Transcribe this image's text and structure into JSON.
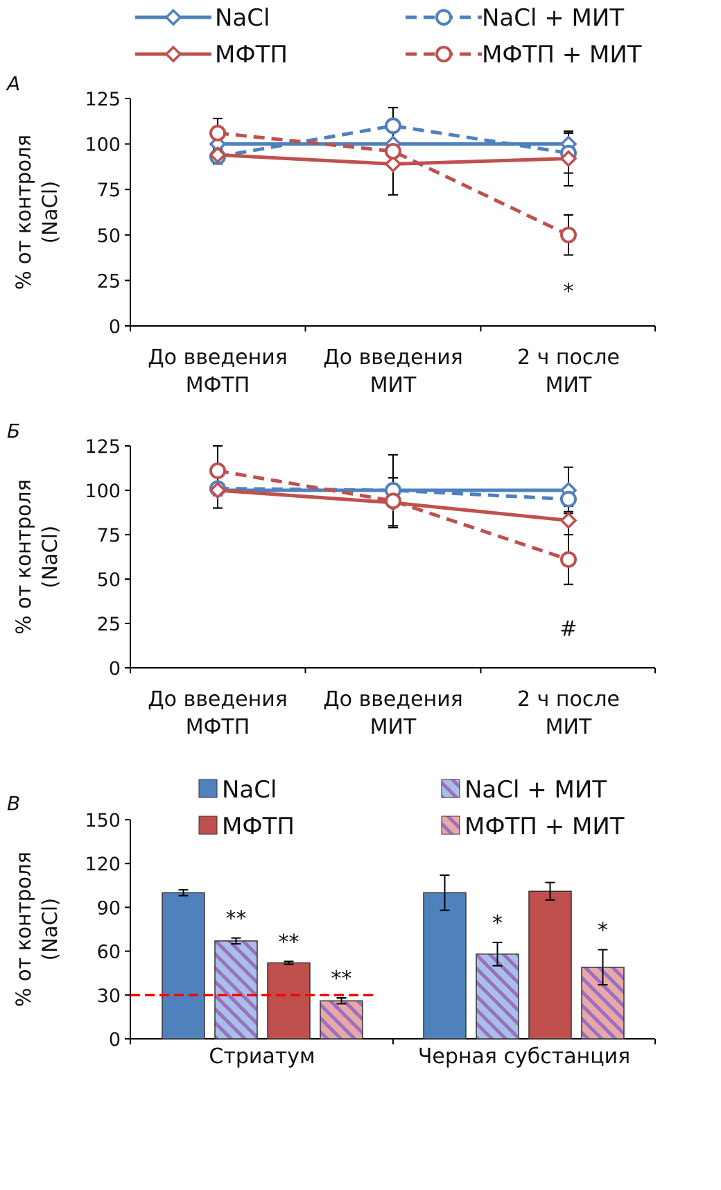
{
  "colors": {
    "blue": "#4f81bd",
    "red": "#c0504d",
    "threshold": "#ff0000"
  },
  "legend_lines": [
    {
      "label": "NaCl",
      "color": "#4f81bd",
      "dash": false,
      "marker": "diamond"
    },
    {
      "label": "NaCl + МИТ",
      "color": "#4f81bd",
      "dash": true,
      "marker": "circle"
    },
    {
      "label": "МФТП",
      "color": "#c0504d",
      "dash": false,
      "marker": "diamond"
    },
    {
      "label": "МФТП + МИТ",
      "color": "#c0504d",
      "dash": true,
      "marker": "circle"
    }
  ],
  "legend_bars": [
    {
      "label": "NaCl",
      "color": "#4f81bd",
      "hatched": false
    },
    {
      "label": "NaCl + МИТ",
      "color": "#4f81bd",
      "hatched": true
    },
    {
      "label": "МФТП",
      "color": "#c0504d",
      "hatched": false
    },
    {
      "label": "МФТП + МИТ",
      "color": "#c0504d",
      "hatched": true
    }
  ],
  "chart_data": [
    {
      "panel_label": "А",
      "type": "line",
      "ylabel": [
        "% от контроля",
        "(NaCl)"
      ],
      "ylim": [
        0,
        125
      ],
      "yticks": [
        0,
        25,
        50,
        75,
        100,
        125
      ],
      "categories": [
        [
          "До введения",
          "МФТП"
        ],
        [
          "До введения",
          "МИТ"
        ],
        [
          "2 ч после",
          "МИТ"
        ]
      ],
      "series": [
        {
          "name": "NaCl",
          "values": [
            100,
            100,
            100
          ],
          "errors": [
            9,
            0,
            6
          ],
          "color": "#4f81bd",
          "dash": false,
          "marker": "diamond"
        },
        {
          "name": "NaCl + МИТ",
          "values": [
            93,
            110,
            95
          ],
          "errors": [
            4,
            10,
            11
          ],
          "color": "#4f81bd",
          "dash": true,
          "marker": "circle"
        },
        {
          "name": "МФТП",
          "values": [
            94,
            89,
            92
          ],
          "errors": [
            0,
            0,
            15
          ],
          "color": "#c0504d",
          "dash": false,
          "marker": "diamond"
        },
        {
          "name": "МФТП + МИТ",
          "values": [
            106,
            96,
            50
          ],
          "errors": [
            8,
            24,
            11
          ],
          "color": "#c0504d",
          "dash": true,
          "marker": "circle"
        }
      ],
      "annotations": [
        {
          "category": 2,
          "y": 19,
          "text": "*"
        }
      ]
    },
    {
      "panel_label": "Б",
      "type": "line",
      "ylabel": [
        "% от контроля",
        "(NaCl)"
      ],
      "ylim": [
        0,
        125
      ],
      "yticks": [
        0,
        25,
        50,
        75,
        100,
        125
      ],
      "categories": [
        [
          "До введения",
          "МФТП"
        ],
        [
          "До введения",
          "МИТ"
        ],
        [
          "2 ч после",
          "МИТ"
        ]
      ],
      "series": [
        {
          "name": "NaCl",
          "values": [
            100,
            100,
            100
          ],
          "errors": [
            10,
            20,
            13
          ],
          "color": "#4f81bd",
          "dash": false,
          "marker": "diamond"
        },
        {
          "name": "NaCl + МИТ",
          "values": [
            101,
            100,
            95
          ],
          "errors": [
            0,
            0,
            7
          ],
          "color": "#4f81bd",
          "dash": true,
          "marker": "circle"
        },
        {
          "name": "МФТП",
          "values": [
            100,
            93,
            83
          ],
          "errors": [
            10,
            14,
            8
          ],
          "color": "#c0504d",
          "dash": false,
          "marker": "diamond"
        },
        {
          "name": "МФТП + МИТ",
          "values": [
            111,
            94,
            61
          ],
          "errors": [
            14,
            0,
            14
          ],
          "color": "#c0504d",
          "dash": true,
          "marker": "circle"
        }
      ],
      "annotations": [
        {
          "category": 2,
          "y": 22,
          "text": "#"
        }
      ]
    },
    {
      "panel_label": "В",
      "type": "bar",
      "ylabel": [
        "% от контроля",
        "(NaCl)"
      ],
      "ylim": [
        0,
        150
      ],
      "yticks": [
        0,
        30,
        60,
        90,
        120,
        150
      ],
      "categories": [
        "Стриатум",
        "Черная субстанция"
      ],
      "series": [
        {
          "name": "NaCl",
          "values": [
            100,
            100
          ],
          "errors": [
            2,
            12
          ],
          "color": "#4f81bd",
          "hatched": false
        },
        {
          "name": "NaCl + МИТ",
          "values": [
            67,
            58
          ],
          "errors": [
            2,
            8
          ],
          "color": "#4f81bd",
          "hatched": true
        },
        {
          "name": "МФТП",
          "values": [
            52,
            101
          ],
          "errors": [
            1,
            6
          ],
          "color": "#c0504d",
          "hatched": false
        },
        {
          "name": "МФТП + МИТ",
          "values": [
            26,
            49
          ],
          "errors": [
            2,
            12
          ],
          "color": "#c0504d",
          "hatched": true
        }
      ],
      "significance": [
        [
          "",
          "**",
          "**",
          "**"
        ],
        [
          "",
          "*",
          "",
          "*"
        ]
      ],
      "reference_line": {
        "y": 30,
        "color": "#ff0000",
        "dash": true,
        "category": 0
      }
    }
  ]
}
